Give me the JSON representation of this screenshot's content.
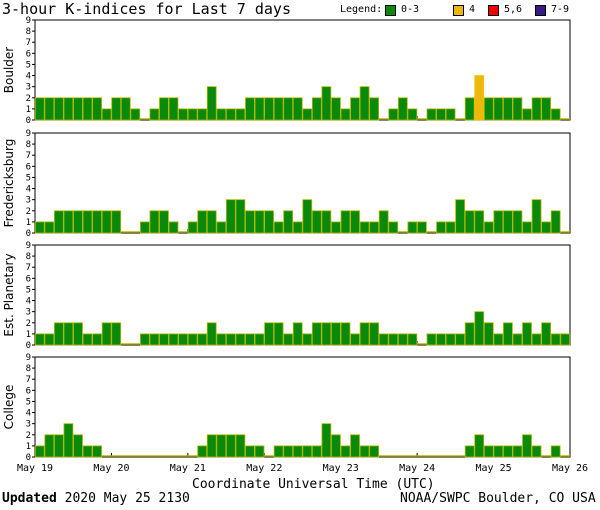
{
  "title": "3-hour K-indices for Last 7 days",
  "legend": {
    "label": "Legend:",
    "items": [
      {
        "label": "0-3",
        "color": "#0a8a0a"
      },
      {
        "label": "4",
        "color": "#ecb80c"
      },
      {
        "label": "5,6",
        "color": "#ee0000"
      },
      {
        "label": "7-9",
        "color": "#3a1a86"
      }
    ]
  },
  "footer": {
    "updated_label": "Updated",
    "updated_value": "2020 May 25 2130",
    "credit": "NOAA/SWPC Boulder, CO USA"
  },
  "chart_data": [
    {
      "type": "bar",
      "ylabel": "Boulder",
      "ylim": [
        0,
        9
      ],
      "yticks": [
        "0",
        "1",
        "2",
        "3",
        "4",
        "5",
        "6",
        "7",
        "8",
        "9"
      ],
      "xlabel": "Coordinate Universal Time (UTC)",
      "xticks": [
        "May 19",
        "May 20",
        "May 21",
        "May 22",
        "May 23",
        "May 24",
        "May 25",
        "May 26"
      ],
      "values": [
        2,
        2,
        2,
        2,
        2,
        2,
        2,
        1,
        2,
        2,
        1,
        0,
        1,
        2,
        2,
        1,
        1,
        1,
        3,
        1,
        1,
        1,
        2,
        2,
        2,
        2,
        2,
        2,
        1,
        2,
        3,
        2,
        1,
        2,
        3,
        2,
        0,
        1,
        2,
        1,
        0,
        1,
        1,
        1,
        0,
        2,
        4,
        2,
        2,
        2,
        2,
        1,
        2,
        2,
        1,
        0
      ]
    },
    {
      "type": "bar",
      "ylabel": "Fredericksburg",
      "ylim": [
        0,
        9
      ],
      "yticks": [
        "0",
        "1",
        "2",
        "3",
        "4",
        "5",
        "6",
        "7",
        "8",
        "9"
      ],
      "values": [
        1,
        1,
        2,
        2,
        2,
        2,
        2,
        2,
        2,
        0,
        0,
        1,
        2,
        2,
        1,
        0,
        1,
        2,
        2,
        1,
        3,
        3,
        2,
        2,
        2,
        1,
        2,
        1,
        3,
        2,
        2,
        1,
        2,
        2,
        1,
        1,
        2,
        1,
        0,
        1,
        1,
        0,
        1,
        1,
        3,
        2,
        2,
        1,
        2,
        2,
        2,
        1,
        3,
        1,
        2,
        0
      ]
    },
    {
      "type": "bar",
      "ylabel": "Est. Planetary",
      "ylim": [
        0,
        9
      ],
      "yticks": [
        "0",
        "1",
        "2",
        "3",
        "4",
        "5",
        "6",
        "7",
        "8",
        "9"
      ],
      "values": [
        1,
        1,
        2,
        2,
        2,
        1,
        1,
        2,
        2,
        0,
        0,
        1,
        1,
        1,
        1,
        1,
        1,
        1,
        2,
        1,
        1,
        1,
        1,
        1,
        2,
        2,
        1,
        2,
        1,
        2,
        2,
        2,
        2,
        1,
        2,
        2,
        1,
        1,
        1,
        1,
        0,
        1,
        1,
        1,
        1,
        2,
        3,
        2,
        1,
        2,
        1,
        2,
        1,
        2,
        1,
        1
      ]
    },
    {
      "type": "bar",
      "ylabel": "College",
      "ylim": [
        0,
        9
      ],
      "yticks": [
        "0",
        "1",
        "2",
        "3",
        "4",
        "5",
        "6",
        "7",
        "8",
        "9"
      ],
      "values": [
        1,
        2,
        2,
        3,
        2,
        1,
        1,
        0,
        0,
        0,
        0,
        0,
        0,
        0,
        0,
        0,
        0,
        1,
        2,
        2,
        2,
        2,
        1,
        1,
        0,
        1,
        1,
        1,
        1,
        1,
        3,
        2,
        1,
        2,
        1,
        1,
        0,
        0,
        0,
        0,
        0,
        0,
        0,
        0,
        0,
        1,
        2,
        1,
        1,
        1,
        1,
        2,
        1,
        0,
        1,
        0
      ]
    }
  ]
}
